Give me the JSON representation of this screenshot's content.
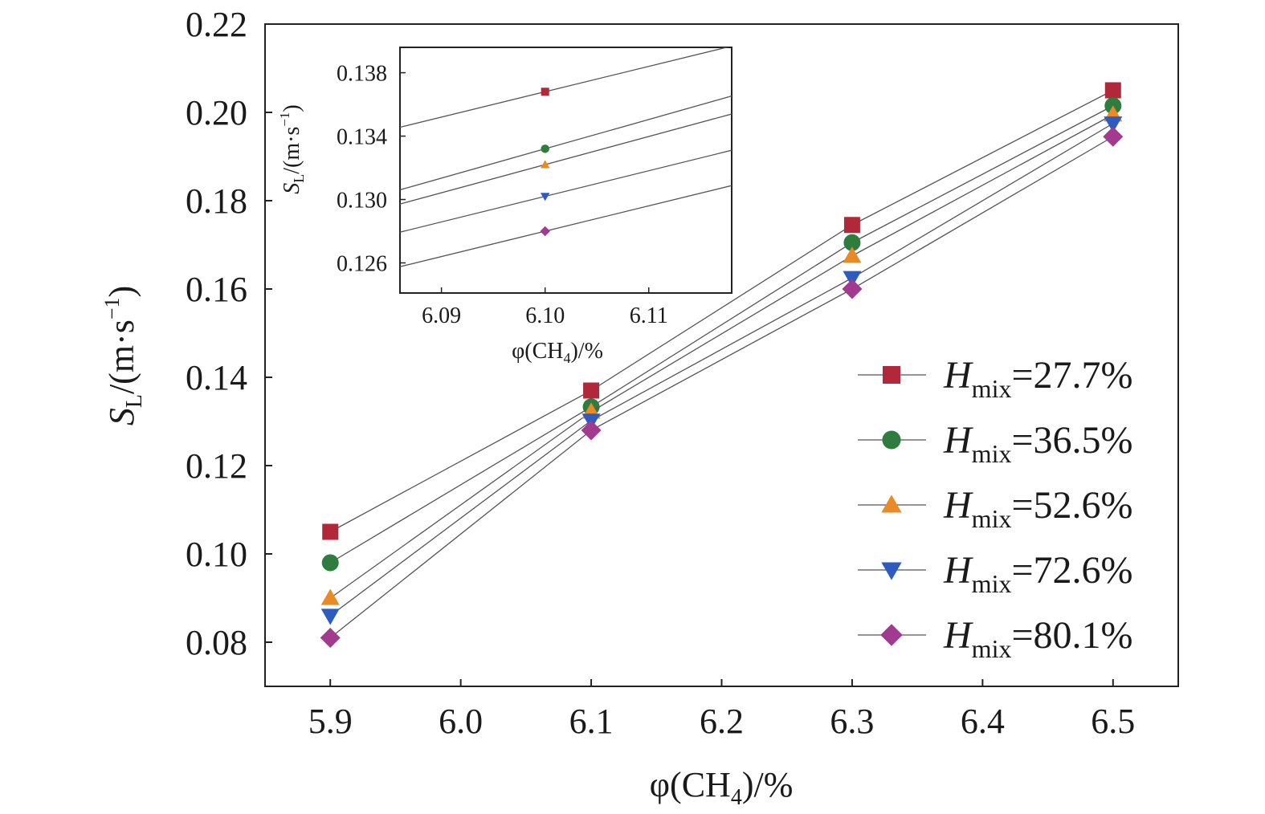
{
  "chart_data": [
    {
      "type": "line",
      "xlabel": {
        "prefix": "φ(CH",
        "sub": "4",
        "suffix": ")/%"
      },
      "ylabel": {
        "main": "S",
        "sub": "L",
        "mid": "/(m·s",
        "sup": "−1",
        "end": ")"
      },
      "xlim": [
        5.85,
        6.55
      ],
      "ylim": [
        0.07,
        0.22
      ],
      "xticks": [
        "5.9",
        "6.0",
        "6.1",
        "6.2",
        "6.3",
        "6.4",
        "6.5"
      ],
      "yticks": [
        "0.08",
        "0.10",
        "0.12",
        "0.14",
        "0.16",
        "0.18",
        "0.20",
        "0.22"
      ],
      "grid": false,
      "legend_position": "lower-right",
      "x": [
        5.9,
        6.1,
        6.3,
        6.5
      ],
      "series": [
        {
          "name": "H_mix=27.7%",
          "label_main": "H",
          "label_sub": "mix",
          "label_rest": "=27.7%",
          "marker": "square",
          "color": "#b0283a",
          "values": [
            0.105,
            0.137,
            0.1745,
            0.205
          ]
        },
        {
          "name": "H_mix=36.5%",
          "label_main": "H",
          "label_sub": "mix",
          "label_rest": "=36.5%",
          "marker": "circle",
          "color": "#2f7d3e",
          "values": [
            0.098,
            0.1333,
            0.1705,
            0.2015
          ]
        },
        {
          "name": "H_mix=52.6%",
          "label_main": "H",
          "label_sub": "mix",
          "label_rest": "=52.6%",
          "marker": "triangle-up",
          "color": "#e88a25",
          "values": [
            0.09,
            0.1322,
            0.1675,
            0.1995
          ]
        },
        {
          "name": "H_mix=72.6%",
          "label_main": "H",
          "label_sub": "mix",
          "label_rest": "=72.6%",
          "marker": "triangle-down",
          "color": "#2d5bbf",
          "values": [
            0.086,
            0.1302,
            0.1625,
            0.1975
          ]
        },
        {
          "name": "H_mix=80.1%",
          "label_main": "H",
          "label_sub": "mix",
          "label_rest": "=80.1%",
          "marker": "diamond",
          "color": "#a23b8f",
          "values": [
            0.081,
            0.128,
            0.16,
            0.1945
          ]
        }
      ]
    },
    {
      "type": "line",
      "inset": true,
      "xlabel": {
        "prefix": "φ(CH",
        "sub": "4",
        "suffix": ")/%"
      },
      "ylabel": {
        "main": "S",
        "sub": "L",
        "mid": "/(m·s",
        "sup": "−1",
        "end": ")"
      },
      "xlim": [
        6.086,
        6.118
      ],
      "ylim": [
        0.1241,
        0.1396
      ],
      "xticks": [
        "6.09",
        "6.10",
        "6.11"
      ],
      "yticks": [
        "0.126",
        "0.130",
        "0.134",
        "0.138"
      ],
      "grid": false,
      "x": [
        6.1
      ],
      "series": [
        {
          "name": "H_mix=27.7%",
          "marker": "square",
          "color": "#b0283a",
          "values": [
            0.1368
          ],
          "slope": 0.16
        },
        {
          "name": "H_mix=36.5%",
          "marker": "circle",
          "color": "#2f7d3e",
          "values": [
            0.1332
          ],
          "slope": 0.185
        },
        {
          "name": "H_mix=52.6%",
          "marker": "triangle-up",
          "color": "#e88a25",
          "values": [
            0.1322
          ],
          "slope": 0.1775
        },
        {
          "name": "H_mix=72.6%",
          "marker": "triangle-down",
          "color": "#2d5bbf",
          "values": [
            0.1302
          ],
          "slope": 0.1615
        },
        {
          "name": "H_mix=80.1%",
          "marker": "diamond",
          "color": "#a23b8f",
          "values": [
            0.128
          ],
          "slope": 0.16
        }
      ]
    }
  ]
}
